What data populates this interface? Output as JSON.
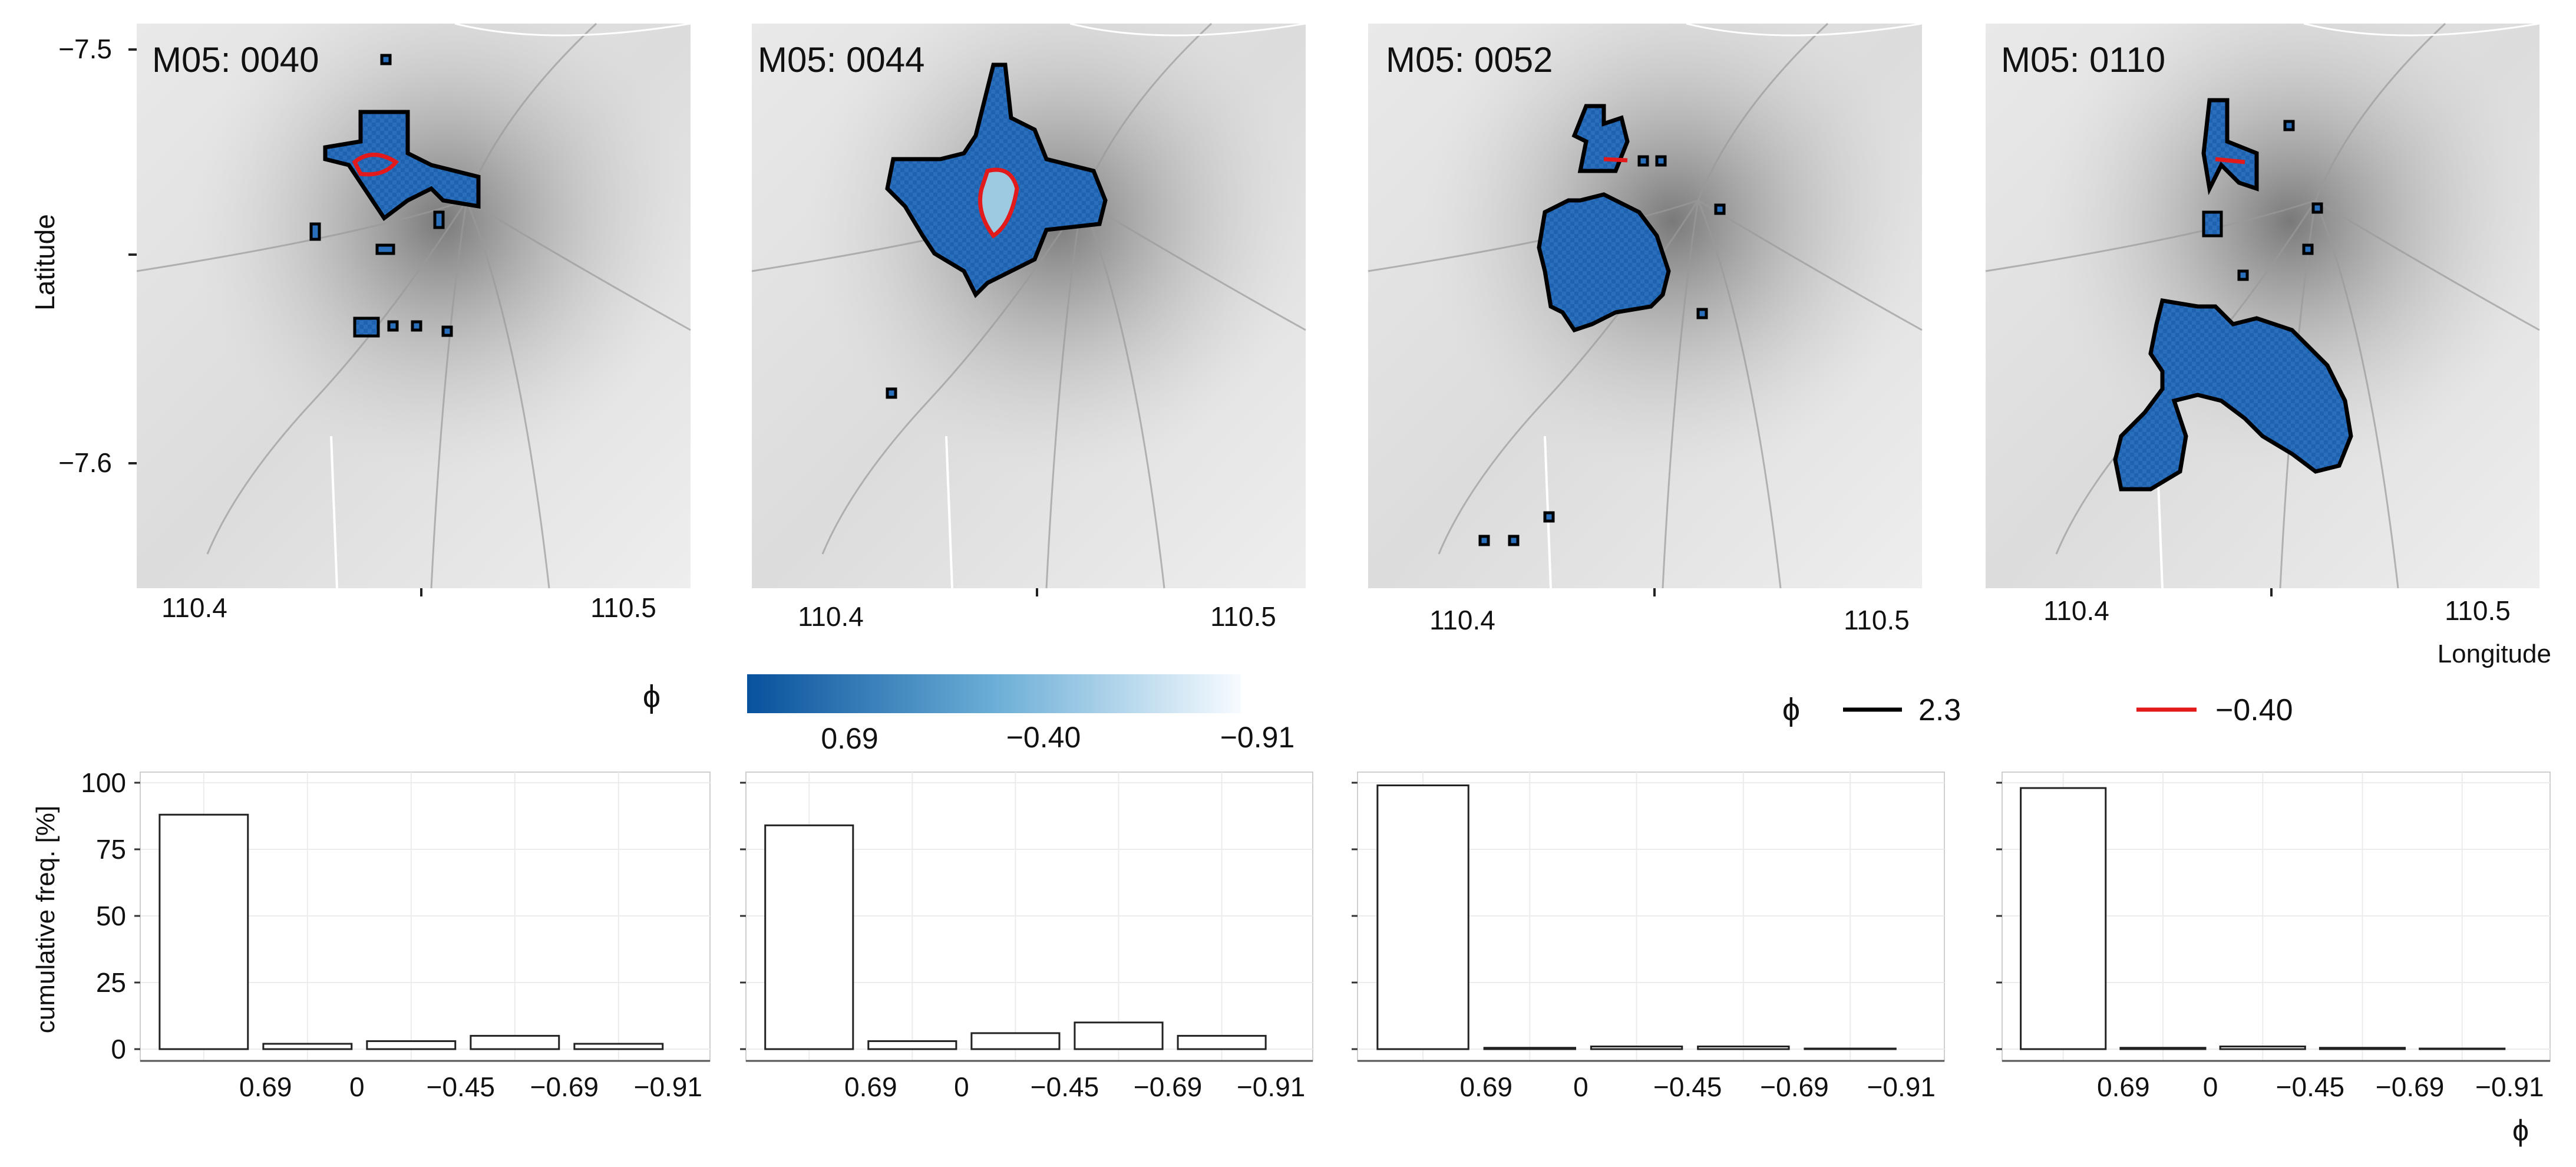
{
  "figure": {
    "y_axis_label": "Latitude",
    "x_axis_label": "Longitude",
    "lat_ticks": [
      "−7.5",
      "−7.6"
    ],
    "lon_ticks": [
      "110.4",
      "110.5"
    ]
  },
  "maps": [
    {
      "id": "map-0040",
      "title": "M05: 0040"
    },
    {
      "id": "map-0044",
      "title": "M05: 0044"
    },
    {
      "id": "map-0052",
      "title": "M05: 0052"
    },
    {
      "id": "map-0110",
      "title": "M05: 0110"
    }
  ],
  "colorbar": {
    "symbol": "ϕ",
    "labels": [
      "0.69",
      "−0.40",
      "−0.91"
    ],
    "color_dark": "#08519c",
    "color_mid": "#6baed6",
    "color_light": "#f7fbff"
  },
  "contour_legend": {
    "symbol": "ϕ",
    "entries": [
      {
        "label": "2.3",
        "color": "#000000"
      },
      {
        "label": "−0.40",
        "color": "#e31a1c"
      }
    ]
  },
  "chart_data": [
    {
      "type": "bar",
      "title": "M05: 0040",
      "ylabel": "cumulative freq. [%]",
      "xlabel": "ϕ",
      "categories": [
        "0.69",
        "0",
        "−0.45",
        "−0.69",
        "−0.91"
      ],
      "values": [
        88,
        2,
        3,
        5,
        2
      ],
      "yticks": [
        "0",
        "25",
        "50",
        "75",
        "100"
      ],
      "ylim": [
        0,
        100
      ]
    },
    {
      "type": "bar",
      "title": "M05: 0044",
      "ylabel": "cumulative freq. [%]",
      "xlabel": "ϕ",
      "categories": [
        "0.69",
        "0",
        "−0.45",
        "−0.69",
        "−0.91"
      ],
      "values": [
        84,
        3,
        6,
        10,
        5
      ],
      "yticks": [],
      "ylim": [
        0,
        100
      ]
    },
    {
      "type": "bar",
      "title": "M05: 0052",
      "ylabel": "cumulative freq. [%]",
      "xlabel": "ϕ",
      "categories": [
        "0.69",
        "0",
        "−0.45",
        "−0.69",
        "−0.91"
      ],
      "values": [
        99,
        0.5,
        1,
        1,
        0
      ],
      "yticks": [],
      "ylim": [
        0,
        100
      ]
    },
    {
      "type": "bar",
      "title": "M05: 0110",
      "ylabel": "cumulative freq. [%]",
      "xlabel": "ϕ",
      "categories": [
        "0.69",
        "0",
        "−0.45",
        "−0.69",
        "−0.91"
      ],
      "values": [
        98,
        0.5,
        1,
        0.5,
        0
      ],
      "yticks": [],
      "ylim": [
        0,
        100
      ]
    }
  ]
}
